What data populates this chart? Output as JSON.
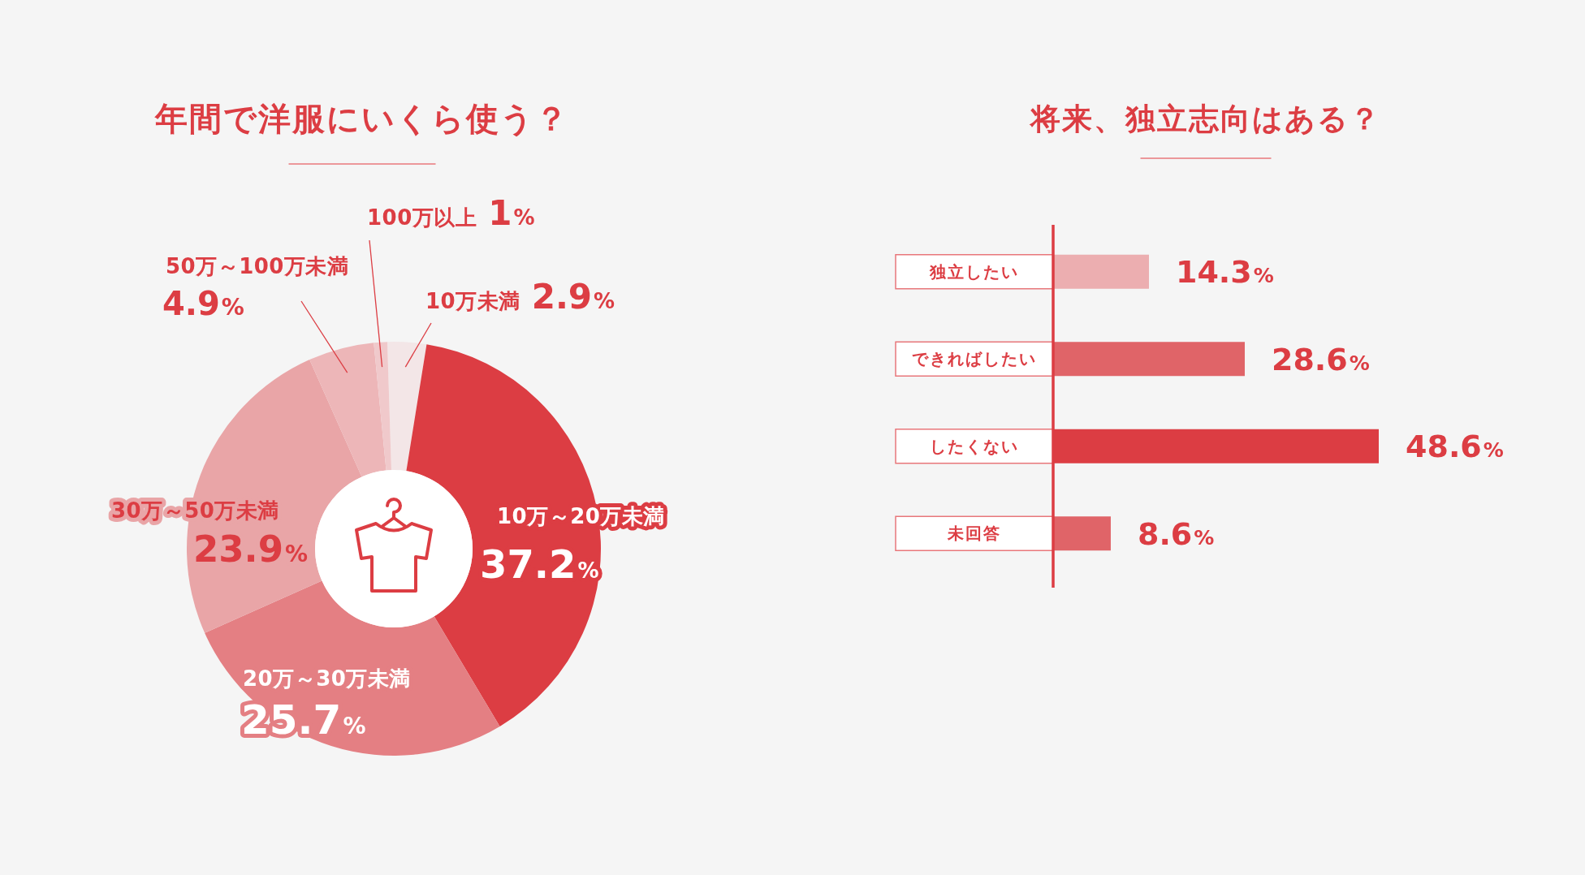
{
  "chart_data": [
    {
      "type": "donut",
      "title": "年間で洋服にいくら使う？",
      "categories": [
        "10万未満",
        "10万～20万未満",
        "20万～30万未満",
        "30万～50万未満",
        "50万～100万未満",
        "100万以上"
      ],
      "values": [
        2.9,
        37.2,
        25.7,
        23.9,
        4.9,
        1
      ],
      "value_labels": [
        "2.9%",
        "37.2%",
        "25.7%",
        "23.9%",
        "4.9%",
        "1%"
      ],
      "colors": [
        "#f3e6e7",
        "#dc3d43",
        "#e47f83",
        "#e9a5a7",
        "#edb6b8",
        "#f0c9cb"
      ]
    },
    {
      "type": "bar",
      "orientation": "horizontal",
      "title": "将来、独立志向はある？",
      "categories": [
        "独立したい",
        "できればしたい",
        "したくない",
        "未回答"
      ],
      "values": [
        14.3,
        28.6,
        48.6,
        8.6
      ],
      "value_labels": [
        "14.3%",
        "28.6%",
        "48.6%",
        "8.6%"
      ],
      "colors": [
        "#ecaeb0",
        "#e06468",
        "#dc3d43",
        "#e06468"
      ],
      "tick_labels": "y"
    }
  ]
}
